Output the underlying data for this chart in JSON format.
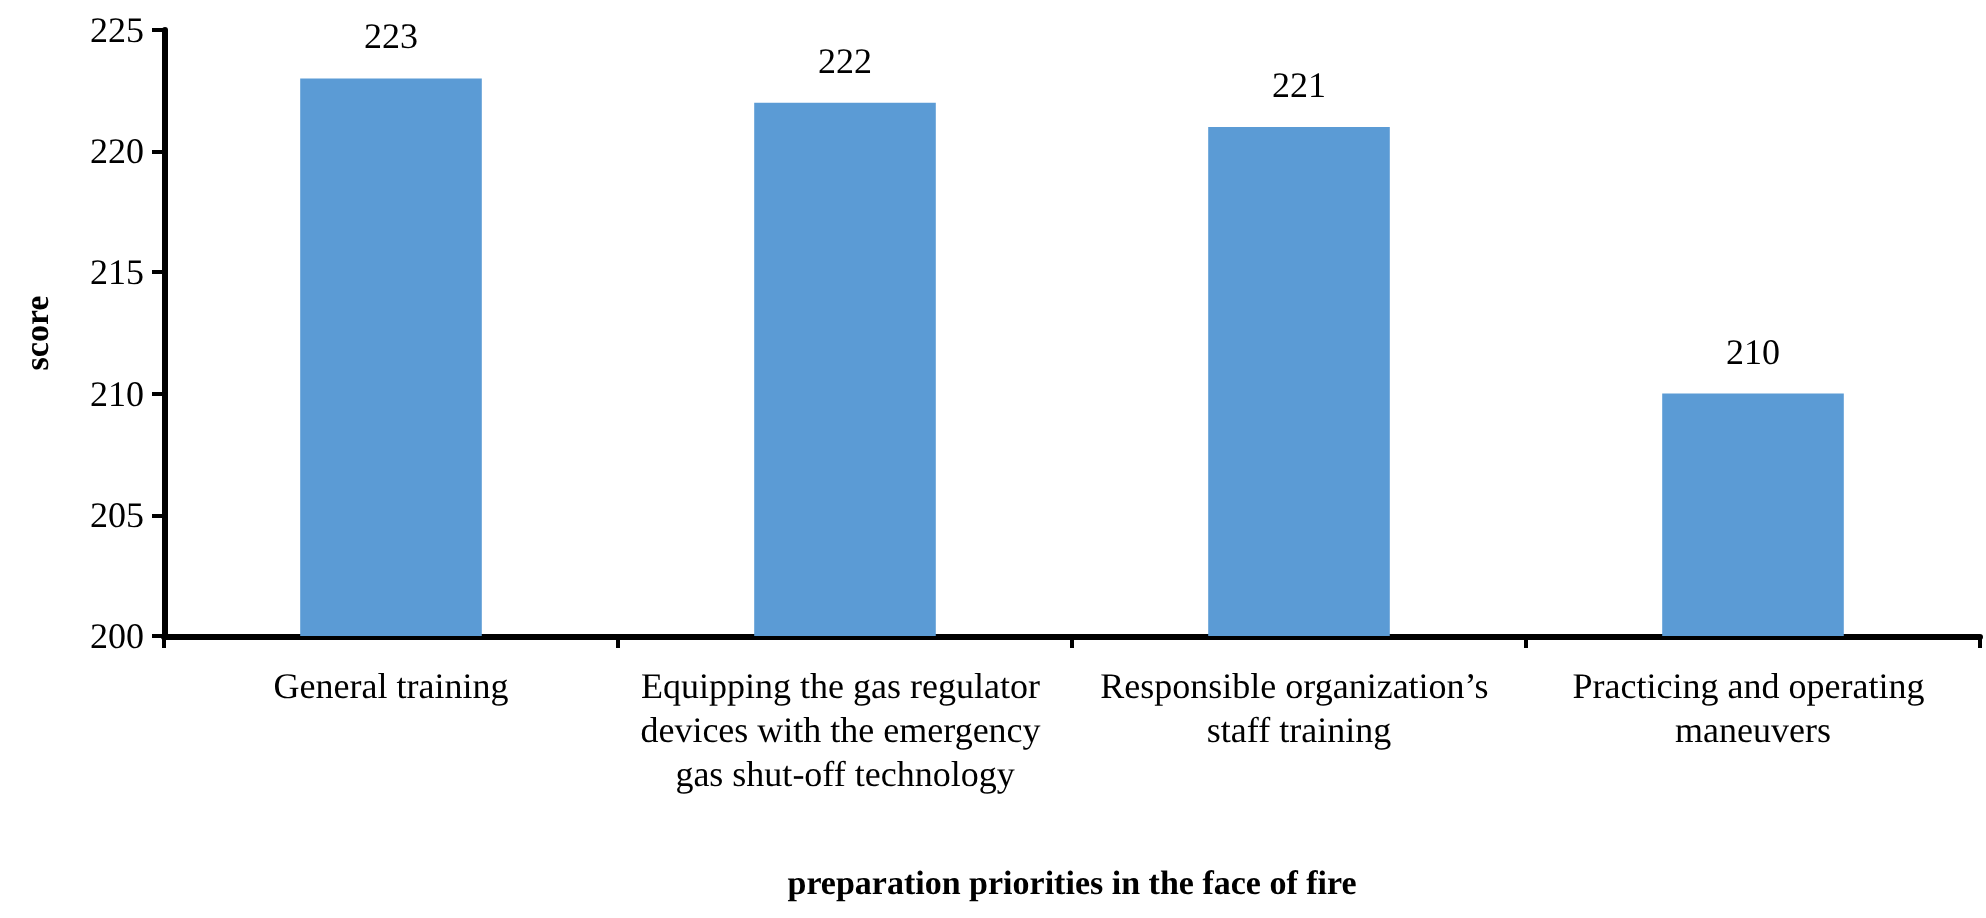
{
  "chart_data": {
    "type": "bar",
    "xlabel": "preparation priorities in the face of fire",
    "ylabel": "score",
    "categories": [
      "General training",
      "Equipping the gas regulator devices with the emergency gas shut-off technology",
      "Responsible organization’s staff training",
      "Practicing and operating maneuvers"
    ],
    "values": [
      223,
      222,
      221,
      210
    ],
    "color": "#5b9bd5",
    "ylim": [
      200,
      225
    ],
    "yticks": [
      200,
      205,
      210,
      215,
      220,
      225
    ],
    "data_labels": true,
    "grid": false
  }
}
